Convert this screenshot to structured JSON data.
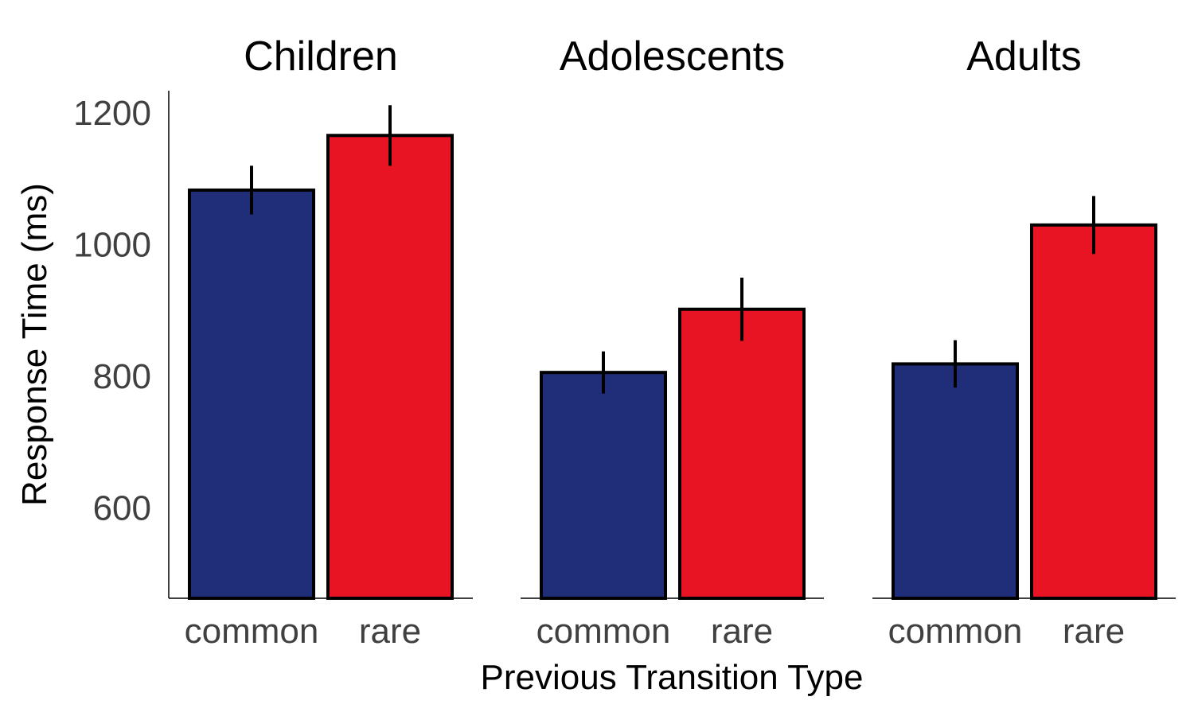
{
  "chart_data": {
    "type": "bar",
    "panels": [
      {
        "title": "Children",
        "categories": [
          "common",
          "rare"
        ],
        "values": [
          1087,
          1170
        ],
        "errors": [
          37,
          46
        ]
      },
      {
        "title": "Adolescents",
        "categories": [
          "common",
          "rare"
        ],
        "values": [
          810,
          906
        ],
        "errors": [
          32,
          48
        ]
      },
      {
        "title": "Adults",
        "categories": [
          "common",
          "rare"
        ],
        "values": [
          823,
          1034
        ],
        "errors": [
          36,
          44
        ]
      }
    ],
    "xlabel": "Previous Transition Type",
    "ylabel": "Response Time (ms)",
    "yticks": [
      600,
      800,
      1000,
      1200
    ],
    "ylim": [
      467,
      1238
    ],
    "grid": false,
    "colors": {
      "common": "#202d78",
      "rare": "#e81424",
      "outline": "#000000"
    }
  }
}
